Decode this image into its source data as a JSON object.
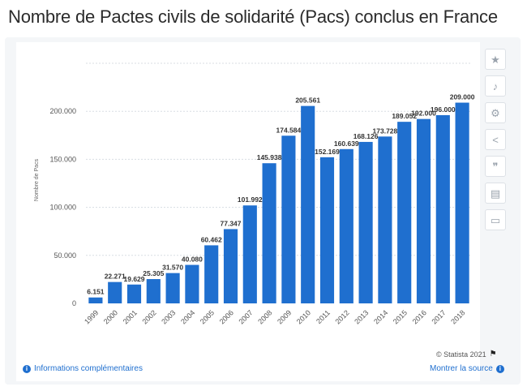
{
  "page": {
    "title": "Nombre de Pactes civils de solidarité (Pacs) conclus en France"
  },
  "chart_data": {
    "type": "bar",
    "title": "",
    "xlabel": "",
    "ylabel": "Nombre de Pacs",
    "ylim": [
      0,
      250000
    ],
    "yticks": [
      0,
      50000,
      100000,
      150000,
      200000
    ],
    "ytick_labels": [
      "0",
      "50.000",
      "100.000",
      "150.000",
      "200.000"
    ],
    "grid": true,
    "color": "#1f6fcf",
    "categories": [
      "1999",
      "2000",
      "2001",
      "2002",
      "2003",
      "2004",
      "2005",
      "2006",
      "2007",
      "2008",
      "2009",
      "2010",
      "2011",
      "2012",
      "2013",
      "2014",
      "2015",
      "2016",
      "2017",
      "2018"
    ],
    "values": [
      6151,
      22271,
      19629,
      25305,
      31570,
      40080,
      60462,
      77347,
      101992,
      145938,
      174584,
      205561,
      152169,
      160639,
      168126,
      173728,
      189052,
      192000,
      196000,
      209000
    ],
    "value_labels": [
      "6.151",
      "22.271",
      "19.629",
      "25.305",
      "31.570",
      "40.080",
      "60.462",
      "77.347",
      "101.992",
      "145.938",
      "174.584",
      "205.561",
      "152.169",
      "160.639",
      "168.126",
      "173.728",
      "189.052",
      "192.000",
      "196.000",
      "209.000"
    ]
  },
  "toolbar": {
    "items": [
      {
        "icon": "star-icon",
        "glyph": "★"
      },
      {
        "icon": "bell-icon",
        "glyph": "♪"
      },
      {
        "icon": "gear-icon",
        "glyph": "⚙"
      },
      {
        "icon": "share-icon",
        "glyph": "<"
      },
      {
        "icon": "quote-icon",
        "glyph": "❞"
      },
      {
        "icon": "flag-icon",
        "glyph": "▤"
      },
      {
        "icon": "print-icon",
        "glyph": "▭"
      }
    ]
  },
  "footer": {
    "more_info": "Informations complémentaires",
    "show_source": "Montrer la source",
    "copyright": "© Statista 2021"
  }
}
